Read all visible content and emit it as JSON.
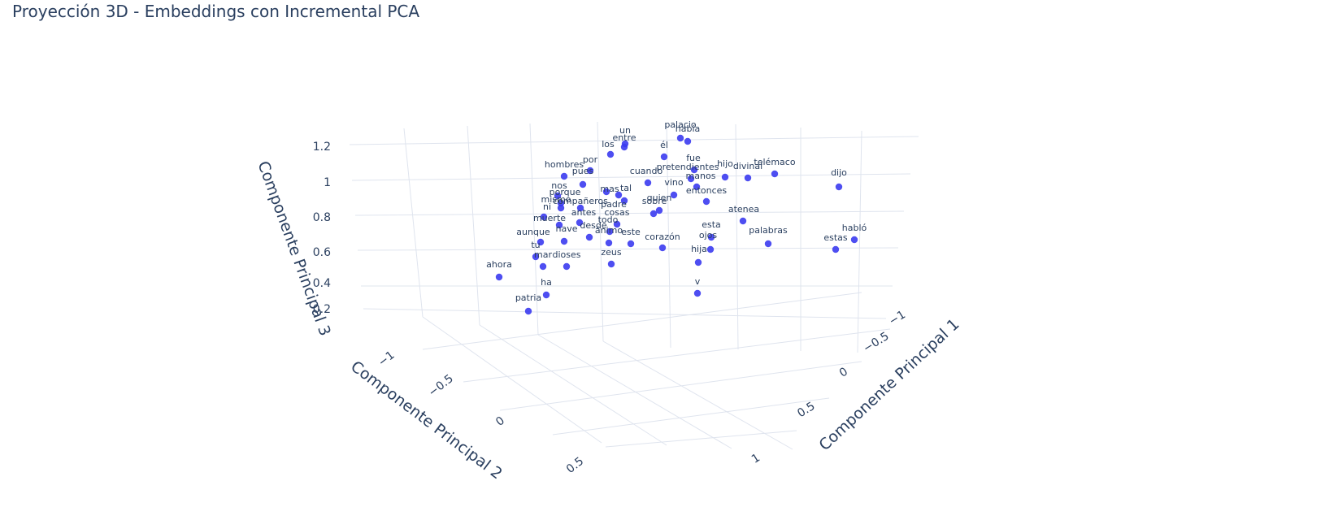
{
  "chart_data": {
    "type": "scatter",
    "title": "Proyección 3D - Embeddings con Incremental PCA",
    "xlabel": "Componente Principal 1",
    "ylabel": "Componente Principal 2",
    "zlabel": "Componente Principal 3",
    "x_ticks": [
      "−1",
      "−0.5",
      "0",
      "0.5",
      "1"
    ],
    "y_ticks": [
      "−1",
      "−0.5",
      "0",
      "0.5"
    ],
    "z_ticks": [
      "0.2",
      "0.4",
      "0.6",
      "0.8",
      "1",
      "1.2"
    ],
    "marker_color": "#3b3bf0",
    "points": [
      {
        "label": "un"
      },
      {
        "label": "palacio"
      },
      {
        "label": "había"
      },
      {
        "label": "entre"
      },
      {
        "label": "los"
      },
      {
        "label": "él"
      },
      {
        "label": "fue"
      },
      {
        "label": "hijo"
      },
      {
        "label": "divinal"
      },
      {
        "label": "telémaco"
      },
      {
        "label": "dijo"
      },
      {
        "label": "hombres"
      },
      {
        "label": "por"
      },
      {
        "label": "pues"
      },
      {
        "label": "pretendientes"
      },
      {
        "label": "cuando"
      },
      {
        "label": "manos"
      },
      {
        "label": "vino"
      },
      {
        "label": "nos"
      },
      {
        "label": "porque"
      },
      {
        "label": "mas"
      },
      {
        "label": "entonces"
      },
      {
        "label": "quien"
      },
      {
        "label": "sobre"
      },
      {
        "label": "tal"
      },
      {
        "label": "padre"
      },
      {
        "label": "atenea"
      },
      {
        "label": "antes"
      },
      {
        "label": "cosas"
      },
      {
        "label": "todo"
      },
      {
        "label": "esta"
      },
      {
        "label": "habló"
      },
      {
        "label": "palabras"
      },
      {
        "label": "estas"
      },
      {
        "label": "ojos"
      },
      {
        "label": "nave"
      },
      {
        "label": "desde"
      },
      {
        "label": "aunque"
      },
      {
        "label": "ánimo"
      },
      {
        "label": "este"
      },
      {
        "label": "corazón"
      },
      {
        "label": "tu"
      },
      {
        "label": "hija"
      },
      {
        "label": "mar"
      },
      {
        "label": "dioses"
      },
      {
        "label": "zeus"
      },
      {
        "label": "ahora"
      },
      {
        "label": "ha"
      },
      {
        "label": "v"
      },
      {
        "label": "patria"
      },
      {
        "label": "ni"
      },
      {
        "label": "muerte"
      },
      {
        "label": "mismo"
      },
      {
        "label": "compañeros"
      }
    ],
    "grid": true,
    "legend": "none"
  }
}
